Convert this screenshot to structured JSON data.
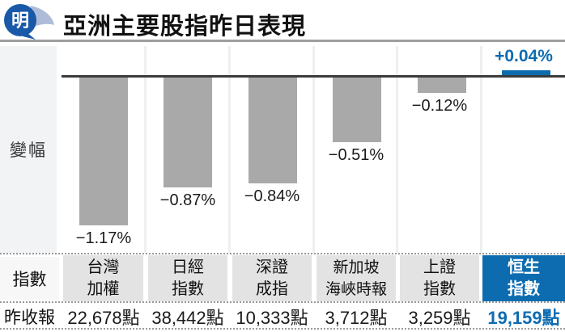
{
  "header": {
    "title": "亞洲主要股指昨日表現"
  },
  "brand": {
    "logo_char": "明"
  },
  "chart_data": {
    "type": "bar",
    "title": "亞洲主要股指昨日表現",
    "row_label": "變幅",
    "categories": [
      "台灣加權",
      "日經指數",
      "深證成指",
      "新加坡海峽時報",
      "上證指數",
      "恒生指數"
    ],
    "values": [
      -1.17,
      -0.87,
      -0.84,
      -0.51,
      -0.12,
      0.04
    ],
    "labels": [
      "−1.17%",
      "−0.87%",
      "−0.84%",
      "−0.51%",
      "−0.12%",
      "+0.04%"
    ],
    "ylabel": "變幅 (%)",
    "ylim": [
      -1.4,
      0.15
    ],
    "grid": false,
    "bar_color_negative": "#a9a9a9",
    "bar_color_positive": "#0d6cb0"
  },
  "table": {
    "index_row_label": "指數",
    "close_row_label": "昨收報",
    "columns": [
      {
        "name_lines": [
          "台灣",
          "加權"
        ],
        "close": "22,678點",
        "highlight": false
      },
      {
        "name_lines": [
          "日經",
          "指數"
        ],
        "close": "38,442點",
        "highlight": false
      },
      {
        "name_lines": [
          "深證",
          "成指"
        ],
        "close": "10,333點",
        "highlight": false
      },
      {
        "name_lines": [
          "新加坡",
          "海峽時報"
        ],
        "close": "3,712點",
        "highlight": false
      },
      {
        "name_lines": [
          "上證",
          "指數"
        ],
        "close": "3,259點",
        "highlight": false
      },
      {
        "name_lines": [
          "恒生",
          "指數"
        ],
        "close": "19,159點",
        "highlight": true
      }
    ]
  },
  "colors": {
    "accent_blue": "#0d6cb0",
    "bar_gray": "#a9a9a9",
    "divider_gray": "#9e9e9e",
    "label_bg": "#f2f3f5",
    "cell_bg": "#e3e3e4"
  }
}
